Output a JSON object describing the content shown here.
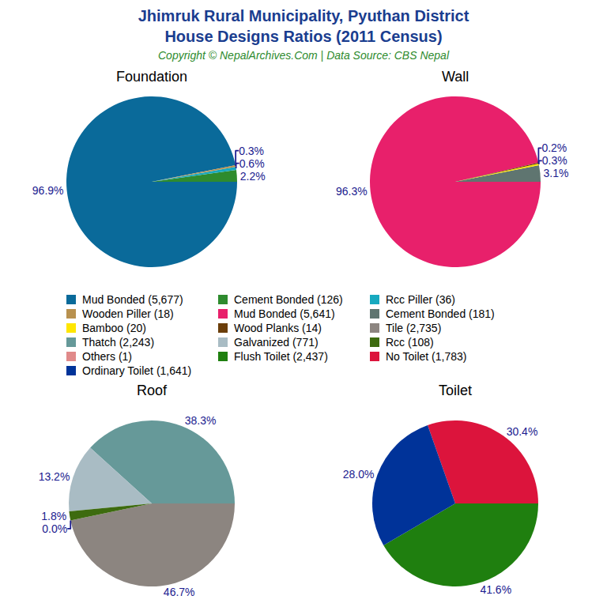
{
  "title": [
    "Jhimruk Rural Municipality, Pyuthan District",
    "House Designs Ratios (2011 Census)"
  ],
  "subtitle": "Copyright © NepalArchives.Com | Data Source: CBS Nepal",
  "chart_data": [
    {
      "type": "pie",
      "title": "Foundation",
      "categories": [
        "Mud Bonded (5,677)",
        "Cement Bonded (126)",
        "Rcc Piller (36)",
        "Wooden Piller (18)"
      ],
      "values": [
        96.9,
        2.2,
        0.6,
        0.3
      ],
      "value_labels": [
        "96.9%",
        "2.2%",
        "0.6%",
        "0.3%"
      ],
      "colors": [
        "#0a6a9a",
        "#2e8b2e",
        "#17a9bf",
        "#b8914f"
      ],
      "data_labels": true
    },
    {
      "type": "pie",
      "title": "Wall",
      "categories": [
        "Mud Bonded (5,641)",
        "Cement Bonded (181)",
        "Bamboo (20)",
        "Wood Planks (14)"
      ],
      "values": [
        96.3,
        3.1,
        0.3,
        0.2
      ],
      "value_labels": [
        "96.3%",
        "3.1%",
        "0.3%",
        "0.2%"
      ],
      "colors": [
        "#e8206b",
        "#5f7570",
        "#ffe600",
        "#6b3e0a"
      ],
      "data_labels": true
    },
    {
      "type": "pie",
      "title": "Roof",
      "categories": [
        "Tile (2,735)",
        "Thatch (2,243)",
        "Galvanized (771)",
        "Rcc (108)",
        "Others (1)"
      ],
      "values": [
        46.7,
        38.3,
        13.2,
        1.8,
        0.0
      ],
      "value_labels": [
        "46.7%",
        "38.3%",
        "13.2%",
        "1.8%",
        "0.0%"
      ],
      "colors": [
        "#8c8580",
        "#669999",
        "#a9bcc4",
        "#3d6b0f",
        "#e08a8a"
      ],
      "data_labels": true
    },
    {
      "type": "pie",
      "title": "Toilet",
      "categories": [
        "Flush Toilet (2,437)",
        "No Toilet (1,783)",
        "Ordinary Toilet (1,641)"
      ],
      "values": [
        41.6,
        30.4,
        28.0
      ],
      "value_labels": [
        "41.6%",
        "30.4%",
        "28.0%"
      ],
      "colors": [
        "#1f7f0f",
        "#dc143c",
        "#003399"
      ],
      "data_labels": true
    }
  ]
}
